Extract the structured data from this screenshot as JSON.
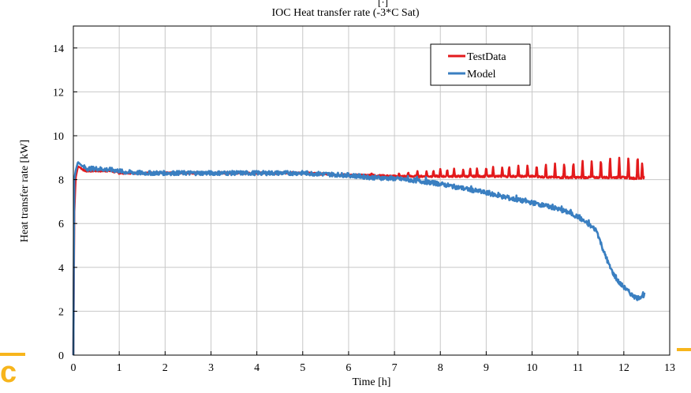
{
  "chart_data": {
    "type": "line",
    "title": "IOC Heat transfer rate (-3*C Sat)",
    "xlabel": "Time [h]",
    "ylabel": "Heat transfer rate [kW]",
    "xlim": [
      0,
      13
    ],
    "ylim": [
      0,
      15
    ],
    "x_ticks": [
      "0",
      "1",
      "2",
      "3",
      "4",
      "5",
      "6",
      "7",
      "8",
      "9",
      "10",
      "11",
      "12",
      "13"
    ],
    "y_ticks": [
      "0",
      "2",
      "4",
      "6",
      "8",
      "10",
      "12",
      "14"
    ],
    "grid": true,
    "legend_position": "top-right",
    "series": [
      {
        "name": "TestData",
        "color": "#e31a1c",
        "x": [
          0.0,
          0.02,
          0.05,
          0.1,
          0.15,
          0.25,
          0.4,
          0.6,
          0.8,
          1.0,
          1.2,
          1.5,
          2.0,
          2.5,
          3.0,
          3.5,
          4.0,
          4.5,
          5.0,
          5.5,
          6.0,
          6.5,
          7.0,
          7.5,
          8.0,
          8.5,
          9.0,
          9.5,
          10.0,
          10.5,
          11.0,
          11.5,
          12.0,
          12.3,
          12.45
        ],
        "y": [
          0.0,
          6.5,
          8.1,
          8.6,
          8.55,
          8.4,
          8.4,
          8.4,
          8.4,
          8.3,
          8.3,
          8.3,
          8.3,
          8.3,
          8.3,
          8.3,
          8.3,
          8.3,
          8.3,
          8.25,
          8.2,
          8.2,
          8.15,
          8.15,
          8.15,
          8.15,
          8.15,
          8.15,
          8.15,
          8.1,
          8.1,
          8.1,
          8.1,
          8.05,
          8.1
        ],
        "spike_times": [
          6.5,
          7.1,
          7.3,
          7.5,
          7.7,
          7.85,
          8.0,
          8.15,
          8.3,
          8.5,
          8.65,
          8.8,
          9.0,
          9.15,
          9.35,
          9.5,
          9.7,
          9.9,
          10.1,
          10.3,
          10.5,
          10.7,
          10.9,
          11.1,
          11.3,
          11.5,
          11.7,
          11.9,
          12.1,
          12.3,
          12.4
        ],
        "spike_peaks": [
          8.3,
          8.3,
          8.35,
          8.4,
          8.4,
          8.45,
          8.5,
          8.5,
          8.5,
          8.5,
          8.55,
          8.55,
          8.6,
          8.6,
          8.6,
          8.65,
          8.65,
          8.7,
          8.7,
          8.75,
          8.75,
          8.8,
          8.85,
          8.9,
          8.9,
          9.0,
          9.1,
          9.0,
          9.1,
          9.2,
          8.8
        ]
      },
      {
        "name": "Model",
        "color": "#3a7fc1",
        "x": [
          0.0,
          0.02,
          0.05,
          0.1,
          0.2,
          0.3,
          0.5,
          0.8,
          1.0,
          1.1,
          1.5,
          2.0,
          2.5,
          3.0,
          3.5,
          4.0,
          4.5,
          5.0,
          5.5,
          6.0,
          6.5,
          7.0,
          7.5,
          8.0,
          8.5,
          9.0,
          9.5,
          10.0,
          10.5,
          10.8,
          11.0,
          11.2,
          11.4,
          11.5,
          11.6,
          11.7,
          11.8,
          11.9,
          12.0,
          12.1,
          12.2,
          12.3,
          12.45
        ],
        "y": [
          0.0,
          8.0,
          8.4,
          8.8,
          8.6,
          8.5,
          8.5,
          8.45,
          8.4,
          8.35,
          8.3,
          8.3,
          8.3,
          8.3,
          8.3,
          8.3,
          8.3,
          8.3,
          8.25,
          8.2,
          8.1,
          8.05,
          7.95,
          7.8,
          7.6,
          7.4,
          7.15,
          6.95,
          6.7,
          6.5,
          6.3,
          6.0,
          5.7,
          5.1,
          4.5,
          4.0,
          3.6,
          3.3,
          3.1,
          2.9,
          2.7,
          2.6,
          2.75
        ],
        "noise_amplitude": 0.1
      }
    ]
  }
}
